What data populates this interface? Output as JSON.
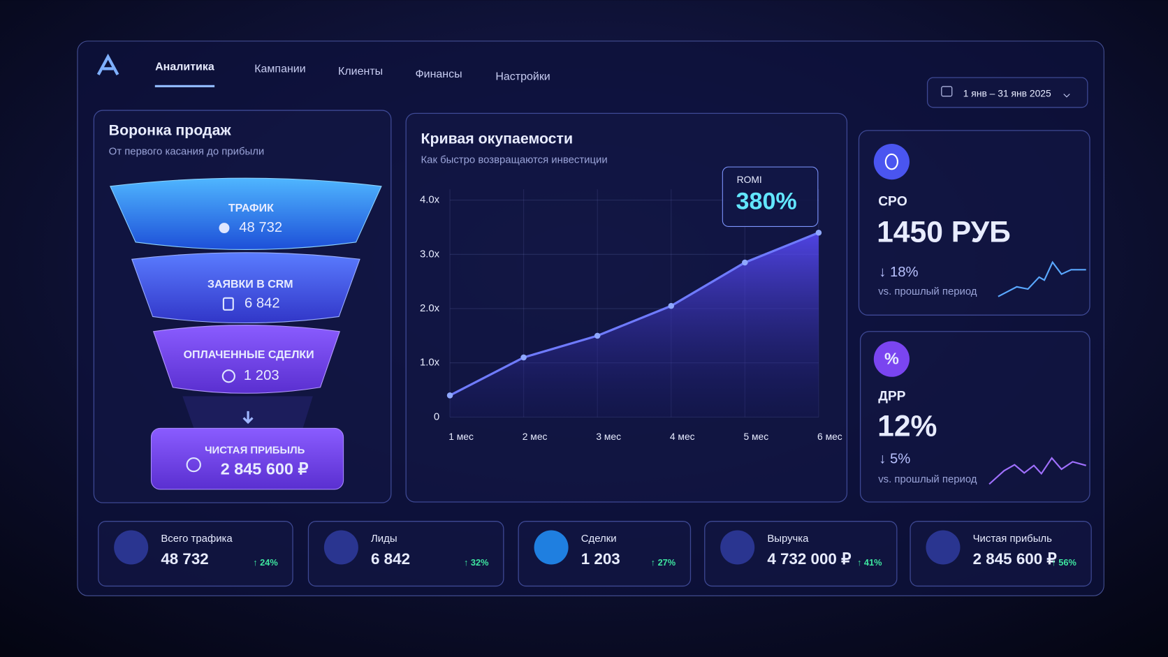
{
  "nav": {
    "items": [
      "Аналитика",
      "Кампании",
      "Клиенты",
      "Финансы",
      "Настройки"
    ],
    "date_range": "1 янв – 31 янв 2025"
  },
  "funnel": {
    "title": "Воронка продаж",
    "subtitle": "От первого касания до прибыли",
    "stages": [
      {
        "label": "ТРАФИК",
        "value": "48 732"
      },
      {
        "label": "ЗАЯВКИ В CRM",
        "value": "6 842"
      },
      {
        "label": "ОПЛАЧЕННЫЕ СДЕЛКИ",
        "value": "1 203"
      }
    ],
    "profit": {
      "label": "ЧИСТАЯ ПРИБЫЛЬ",
      "value": "2 845 600 ₽"
    }
  },
  "chart_data": {
    "type": "line",
    "title": "Кривая окупаемости",
    "subtitle": "Как быстро возвращаются инвестиции",
    "categories": [
      "1 мес",
      "2 мес",
      "3 мес",
      "4 мес",
      "5 мес",
      "6 мес"
    ],
    "values": [
      0.4,
      1.1,
      1.5,
      2.05,
      2.85,
      3.4
    ],
    "ylim": [
      0,
      4.2
    ],
    "yticks": [
      0,
      {
        "value": 1,
        "label": "1.0x"
      },
      {
        "value": 2,
        "label": "2.0x"
      },
      {
        "value": 3,
        "label": "3.0x"
      },
      {
        "value": 4,
        "label": "4.0x"
      }
    ],
    "grid": true,
    "color": "#6f7bff",
    "annotation": {
      "label": "ROMI",
      "value": "380%"
    }
  },
  "kpis": [
    {
      "label": "CPO",
      "value": "1450 РУБ",
      "change": "↓ 18%",
      "note": "vs. прошлый период"
    },
    {
      "icon": "%",
      "label": "ДРР",
      "value": "12%",
      "change": "↓ 5%",
      "note": "vs. прошлый период"
    }
  ],
  "stats": [
    {
      "label": "Всего трафика",
      "value": "48 732",
      "change": "↑ 24%"
    },
    {
      "label": "Лиды",
      "value": "6 842",
      "change": "↑ 32%"
    },
    {
      "label": "Сделки",
      "value": "1 203",
      "change": "↑ 27%"
    },
    {
      "label": "Выручка",
      "value": "4 732 000 ₽",
      "change": "↑ 41%"
    },
    {
      "label": "Чистая прибыль",
      "value": "2 845 600 ₽",
      "change": "↑ 56%"
    }
  ]
}
